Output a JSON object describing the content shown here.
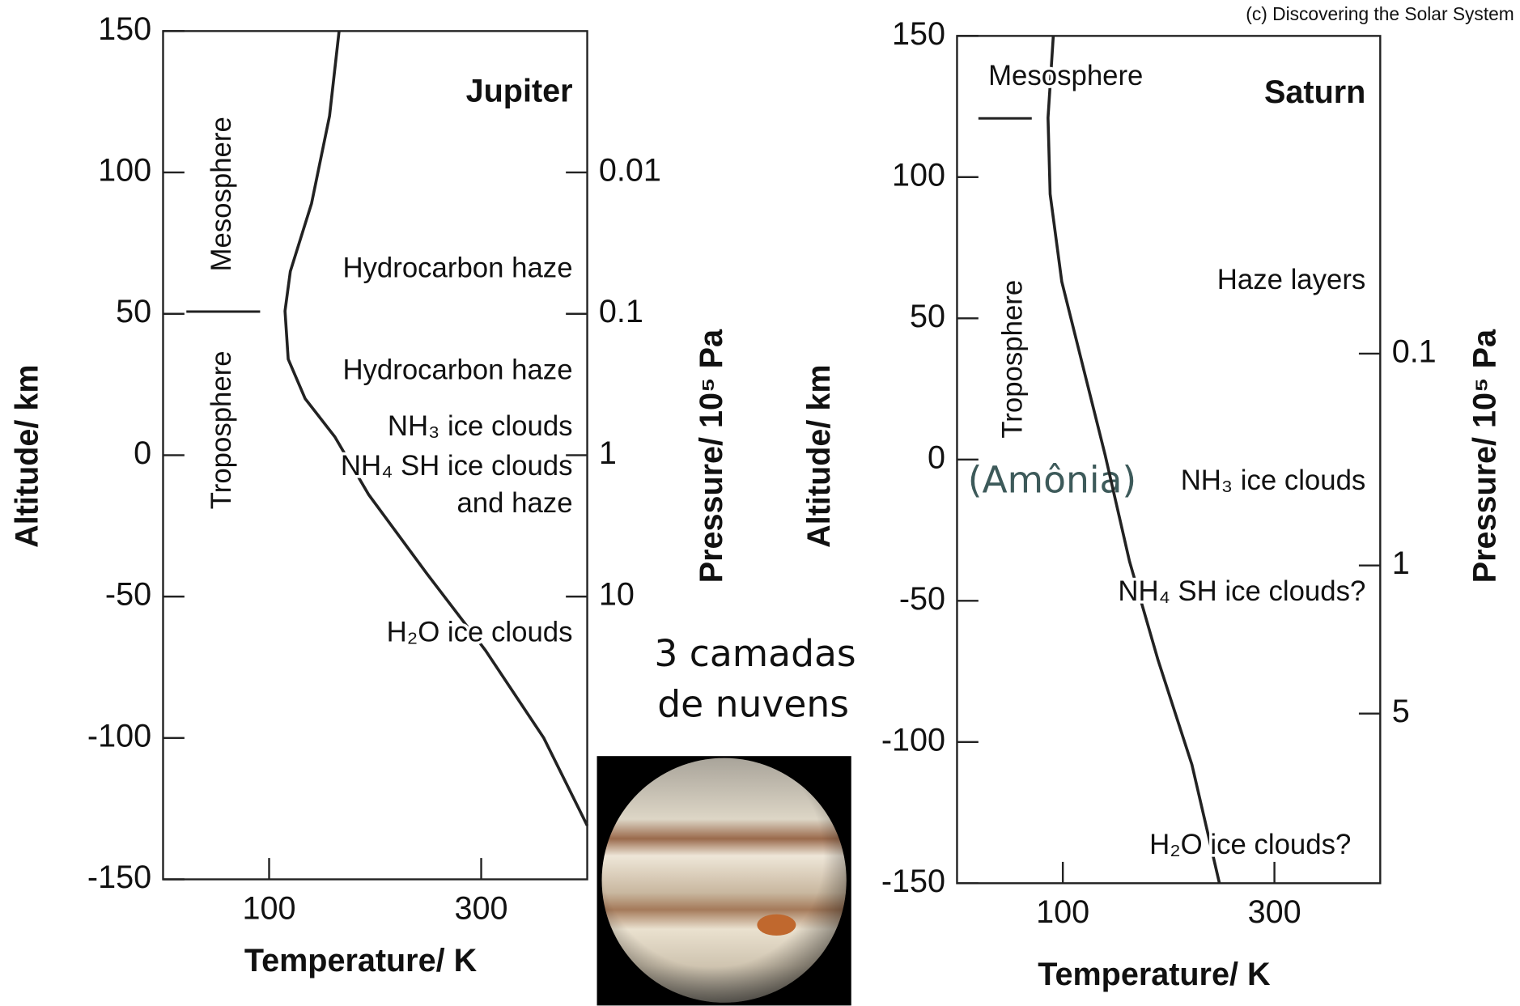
{
  "credit": "(c) Discovering the Solar System",
  "note": {
    "lines": [
      "3 camadas",
      "de nuvens"
    ]
  },
  "overlay_label": "(Amônia)",
  "chart_data": [
    {
      "type": "line",
      "title": "Jupiter",
      "x_label": "Temperature/ K",
      "y_label": "Altitude/ km",
      "y2_label": "Pressure/ 10⁵ Pa",
      "x": [
        166,
        157,
        140,
        120,
        115,
        118,
        134,
        162,
        194,
        249,
        304,
        359,
        400
      ],
      "values": [
        150,
        120,
        89,
        65,
        51,
        34,
        20,
        6.5,
        -14,
        -42,
        -69,
        -100,
        -131
      ],
      "color": "#222",
      "xlim": [
        0,
        400
      ],
      "xticks": [
        100,
        300
      ],
      "ylim": [
        -150,
        150
      ],
      "yticks": [
        -150,
        -100,
        -50,
        0,
        50,
        100,
        150
      ],
      "y2lim": [
        1000,
        0.001
      ],
      "y2_log": true,
      "y2ticks": [
        0.01,
        0.1,
        1,
        10
      ],
      "annotations": [
        "Mesosphere",
        "Troposphere",
        "Hydrocarbon haze",
        "Hydrocarbon haze",
        "NH₃ ice clouds",
        "NH₄ SH ice clouds",
        "and haze",
        "H₂O ice clouds"
      ]
    },
    {
      "type": "line",
      "title": "Saturn",
      "x_label": "Temperature/ K",
      "y_label": "Altitude/ km",
      "y2_label": "Pressure/ 10⁵ Pa",
      "x": [
        91,
        86,
        88,
        99,
        117,
        140,
        163,
        190,
        222,
        248
      ],
      "values": [
        150,
        121,
        94,
        63,
        36,
        1.6,
        -36,
        -71,
        -108,
        -150
      ],
      "color": "#222",
      "xlim": [
        0,
        400
      ],
      "xticks": [
        100,
        300
      ],
      "ylim": [
        -150,
        150
      ],
      "yticks": [
        -150,
        -100,
        -50,
        0,
        50,
        100,
        150
      ],
      "y2lim": [
        31.62,
        0.003162
      ],
      "y2_log": true,
      "y2ticks": [
        0.1,
        1,
        5
      ],
      "annotations": [
        "Mesosphere",
        "Troposphere",
        "Haze layers",
        "NH₃ ice clouds",
        "NH₄ SH ice clouds?",
        "H₂O ice clouds?"
      ]
    }
  ]
}
